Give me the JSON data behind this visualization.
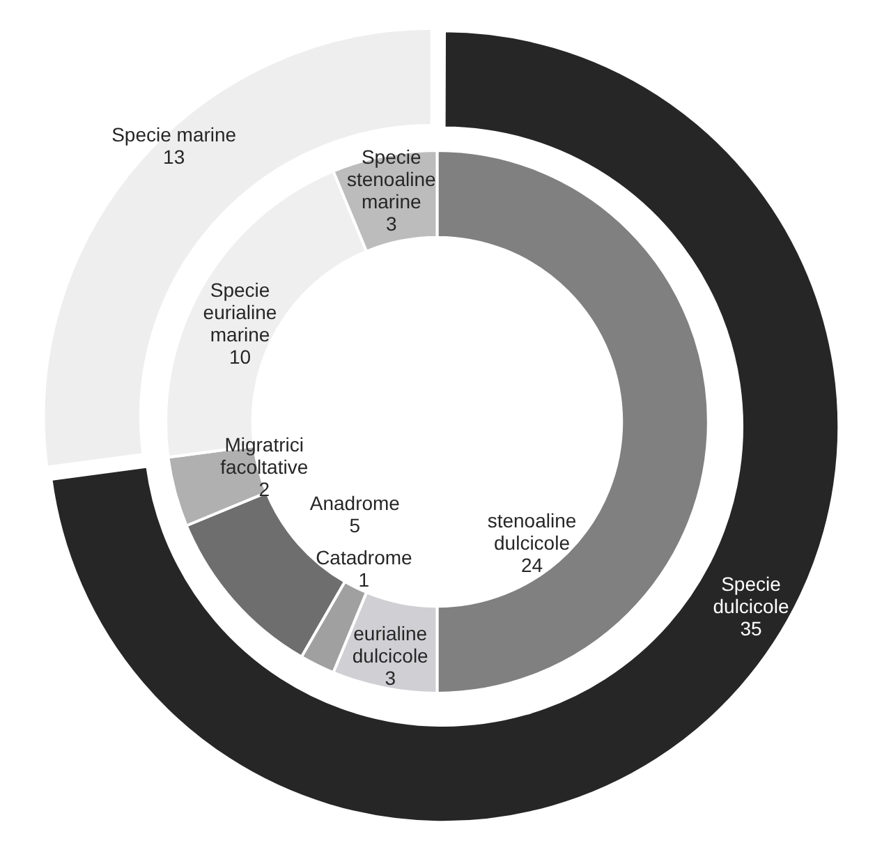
{
  "chart_data": [
    {
      "type": "donut",
      "categories": [
        "Specie dulcicole",
        "Specie marine"
      ],
      "values": [
        35,
        13
      ],
      "colors": [
        "#262626",
        "#eeeeee"
      ],
      "data_labels": true,
      "legend": false
    },
    {
      "type": "donut",
      "categories": [
        "stenoaline dulcicole",
        "eurialine dulcicole",
        "Catadrome",
        "Anadrome",
        "Migratrici facoltative",
        "Specie eurialine marine",
        "Specie stenoaline marine"
      ],
      "values": [
        24,
        3,
        1,
        5,
        2,
        10,
        3
      ],
      "colors": [
        "#808080",
        "#d0d0d4",
        "#a0a0a0",
        "#6e6e6e",
        "#b0b0b0",
        "#efefef",
        "#bcbcbc"
      ],
      "data_labels": true,
      "legend": false
    }
  ]
}
